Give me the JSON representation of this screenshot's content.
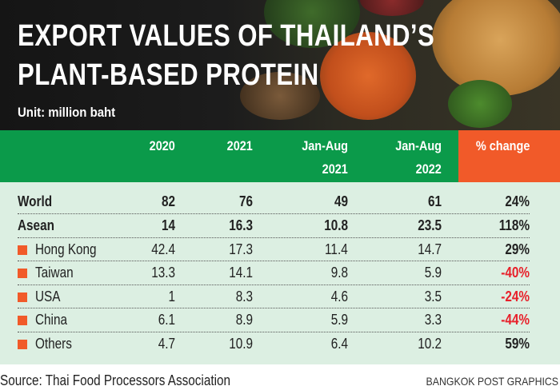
{
  "title_line1": "EXPORT VALUES OF THAILAND’S",
  "title_line2": "PLANT-BASED PROTEIN",
  "unit": "Unit: million baht",
  "colors": {
    "header": "#0b9a4a",
    "change_header": "#f15a29",
    "body": "#dcefe2",
    "negative": "#e8202a",
    "marker": "#f15a29"
  },
  "chart_data": {
    "type": "table",
    "columns": [
      {
        "l1": "2020",
        "l2": ""
      },
      {
        "l1": "2021",
        "l2": ""
      },
      {
        "l1": "Jan-Aug",
        "l2": "2021"
      },
      {
        "l1": "Jan-Aug",
        "l2": "2022"
      },
      {
        "l1": "% change",
        "l2": ""
      }
    ],
    "rows": [
      {
        "label": "World",
        "values": [
          "82",
          "76",
          "49",
          "61",
          "24%"
        ],
        "bold": true
      },
      {
        "label": "Asean",
        "values": [
          "14",
          "16.3",
          "10.8",
          "23.5",
          "118%"
        ],
        "bold": true
      },
      {
        "label": "Hong Kong",
        "values": [
          "42.4",
          "17.3",
          "11.4",
          "14.7",
          "29%"
        ]
      },
      {
        "label": "Taiwan",
        "values": [
          "13.3",
          "14.1",
          "9.8",
          "5.9",
          "-40%"
        ]
      },
      {
        "label": "USA",
        "values": [
          "1",
          "8.3",
          "4.6",
          "3.5",
          "-24%"
        ]
      },
      {
        "label": "China",
        "values": [
          "6.1",
          "8.9",
          "5.9",
          "3.3",
          "-44%"
        ]
      },
      {
        "label": "Others",
        "values": [
          "4.7",
          "10.9",
          "6.4",
          "10.2",
          "59%"
        ]
      }
    ]
  },
  "source": "Source: Thai Food Processors Association",
  "credit": "BANGKOK POST GRAPHICS"
}
